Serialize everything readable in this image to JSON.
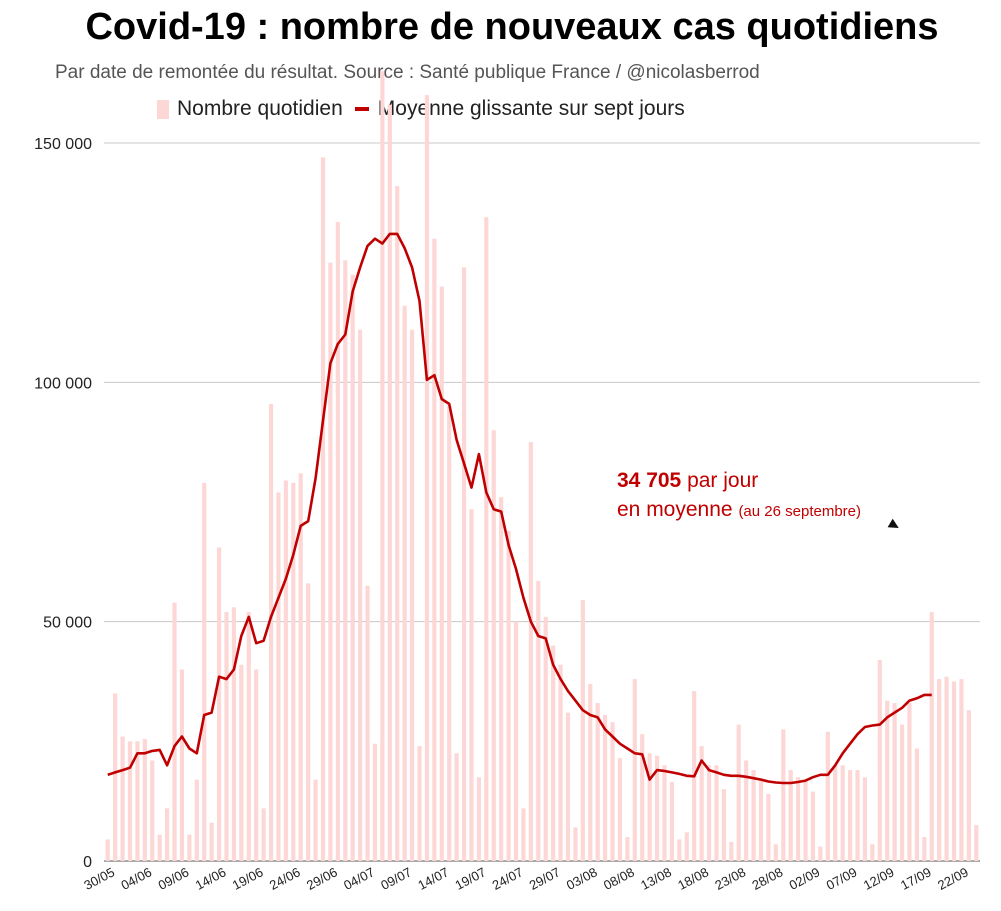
{
  "chart_data": {
    "type": "bar",
    "title": "Covid-19 : nombre de nouveaux cas quotidiens",
    "subtitle": "Par date de remontée du résultat. Source : Santé publique France / @nicolasberrod",
    "xlabel": "",
    "ylabel": "",
    "ylim": [
      0,
      150000
    ],
    "yticks": [
      0,
      50000,
      100000,
      150000
    ],
    "ytick_labels": [
      "0",
      "50 000",
      "100 000",
      "150 000"
    ],
    "grid": true,
    "legend_position": "top",
    "colors": {
      "bars": "#fdd6d6",
      "line": "#c00000",
      "arrow": "#111111"
    },
    "x_start": "30/05",
    "xtick_labels": [
      "30/05",
      "04/06",
      "09/06",
      "14/06",
      "19/06",
      "24/06",
      "29/06",
      "04/07",
      "09/07",
      "14/07",
      "19/07",
      "24/07",
      "29/07",
      "03/08",
      "08/08",
      "13/08",
      "18/08",
      "23/08",
      "28/08",
      "02/09",
      "07/09",
      "12/09",
      "17/09",
      "22/09"
    ],
    "series": [
      {
        "name": "Nombre quotidien",
        "kind": "bar",
        "values": [
          4500,
          35000,
          26000,
          25000,
          25000,
          25500,
          21000,
          5500,
          11000,
          54000,
          40000,
          5500,
          17000,
          79000,
          8000,
          65500,
          52000,
          53000,
          41000,
          52000,
          40000,
          11000,
          95500,
          77000,
          79500,
          79000,
          81000,
          58000,
          17000,
          147000,
          125000,
          133500,
          125500,
          122500,
          111000,
          57500,
          24500,
          165000,
          158000,
          141000,
          116000,
          111000,
          24000,
          160000,
          130000,
          120000,
          95000,
          22500,
          124000,
          73500,
          17500,
          134500,
          90000,
          76000,
          69000,
          50000,
          11000,
          87500,
          58500,
          51000,
          45000,
          41000,
          31000,
          7000,
          54500,
          37000,
          33000,
          30500,
          29000,
          21500,
          5000,
          38000,
          26500,
          22500,
          22000,
          20000,
          16500,
          4500,
          6000,
          35500,
          24000,
          20000,
          20000,
          15000,
          4000,
          28500,
          21000,
          19000,
          17000,
          14000,
          3500,
          27500,
          19000,
          17500,
          17000,
          14500,
          3000,
          27000,
          20000,
          20000,
          19000,
          19000,
          17500,
          3500,
          42000,
          33500,
          33000,
          28500,
          33000,
          23500,
          5000,
          52000,
          38000,
          38500,
          37500,
          38000,
          31500,
          7500
        ]
      },
      {
        "name": "Moyenne glissante sur sept jours",
        "kind": "line",
        "values": [
          18000,
          18500,
          19000,
          19500,
          22500,
          22500,
          23000,
          23200,
          20000,
          24000,
          26000,
          23500,
          22500,
          30500,
          31000,
          38500,
          38000,
          40000,
          47000,
          51000,
          45500,
          46000,
          51000,
          55000,
          59000,
          64000,
          70000,
          71000,
          80000,
          92000,
          104000,
          108000,
          110000,
          119000,
          124000,
          128500,
          130000,
          129000,
          131000,
          131000,
          128000,
          124000,
          117000,
          100500,
          101500,
          96500,
          95500,
          88000,
          83000,
          78000,
          85000,
          77000,
          73500,
          73000,
          66000,
          61000,
          55000,
          50000,
          47000,
          46500,
          41000,
          38000,
          35500,
          33500,
          31500,
          30500,
          30000,
          27500,
          26000,
          24500,
          23500,
          22500,
          22300,
          17000,
          19000,
          18800,
          18500,
          18200,
          17800,
          17700,
          21000,
          19000,
          18500,
          18000,
          17800,
          17800,
          17600,
          17300,
          17000,
          16600,
          16400,
          16300,
          16300,
          16500,
          16800,
          17500,
          18000,
          18000,
          20000,
          22500,
          24500,
          26500,
          28000,
          28300,
          28500,
          30000,
          31000,
          32000,
          33500,
          34000,
          34705,
          34705
        ]
      }
    ],
    "annotation": {
      "value_bold": "34 705",
      "text_line1": "par jour",
      "text_line2": "en moyenne",
      "text_small": "(au 26 septembre)"
    }
  }
}
